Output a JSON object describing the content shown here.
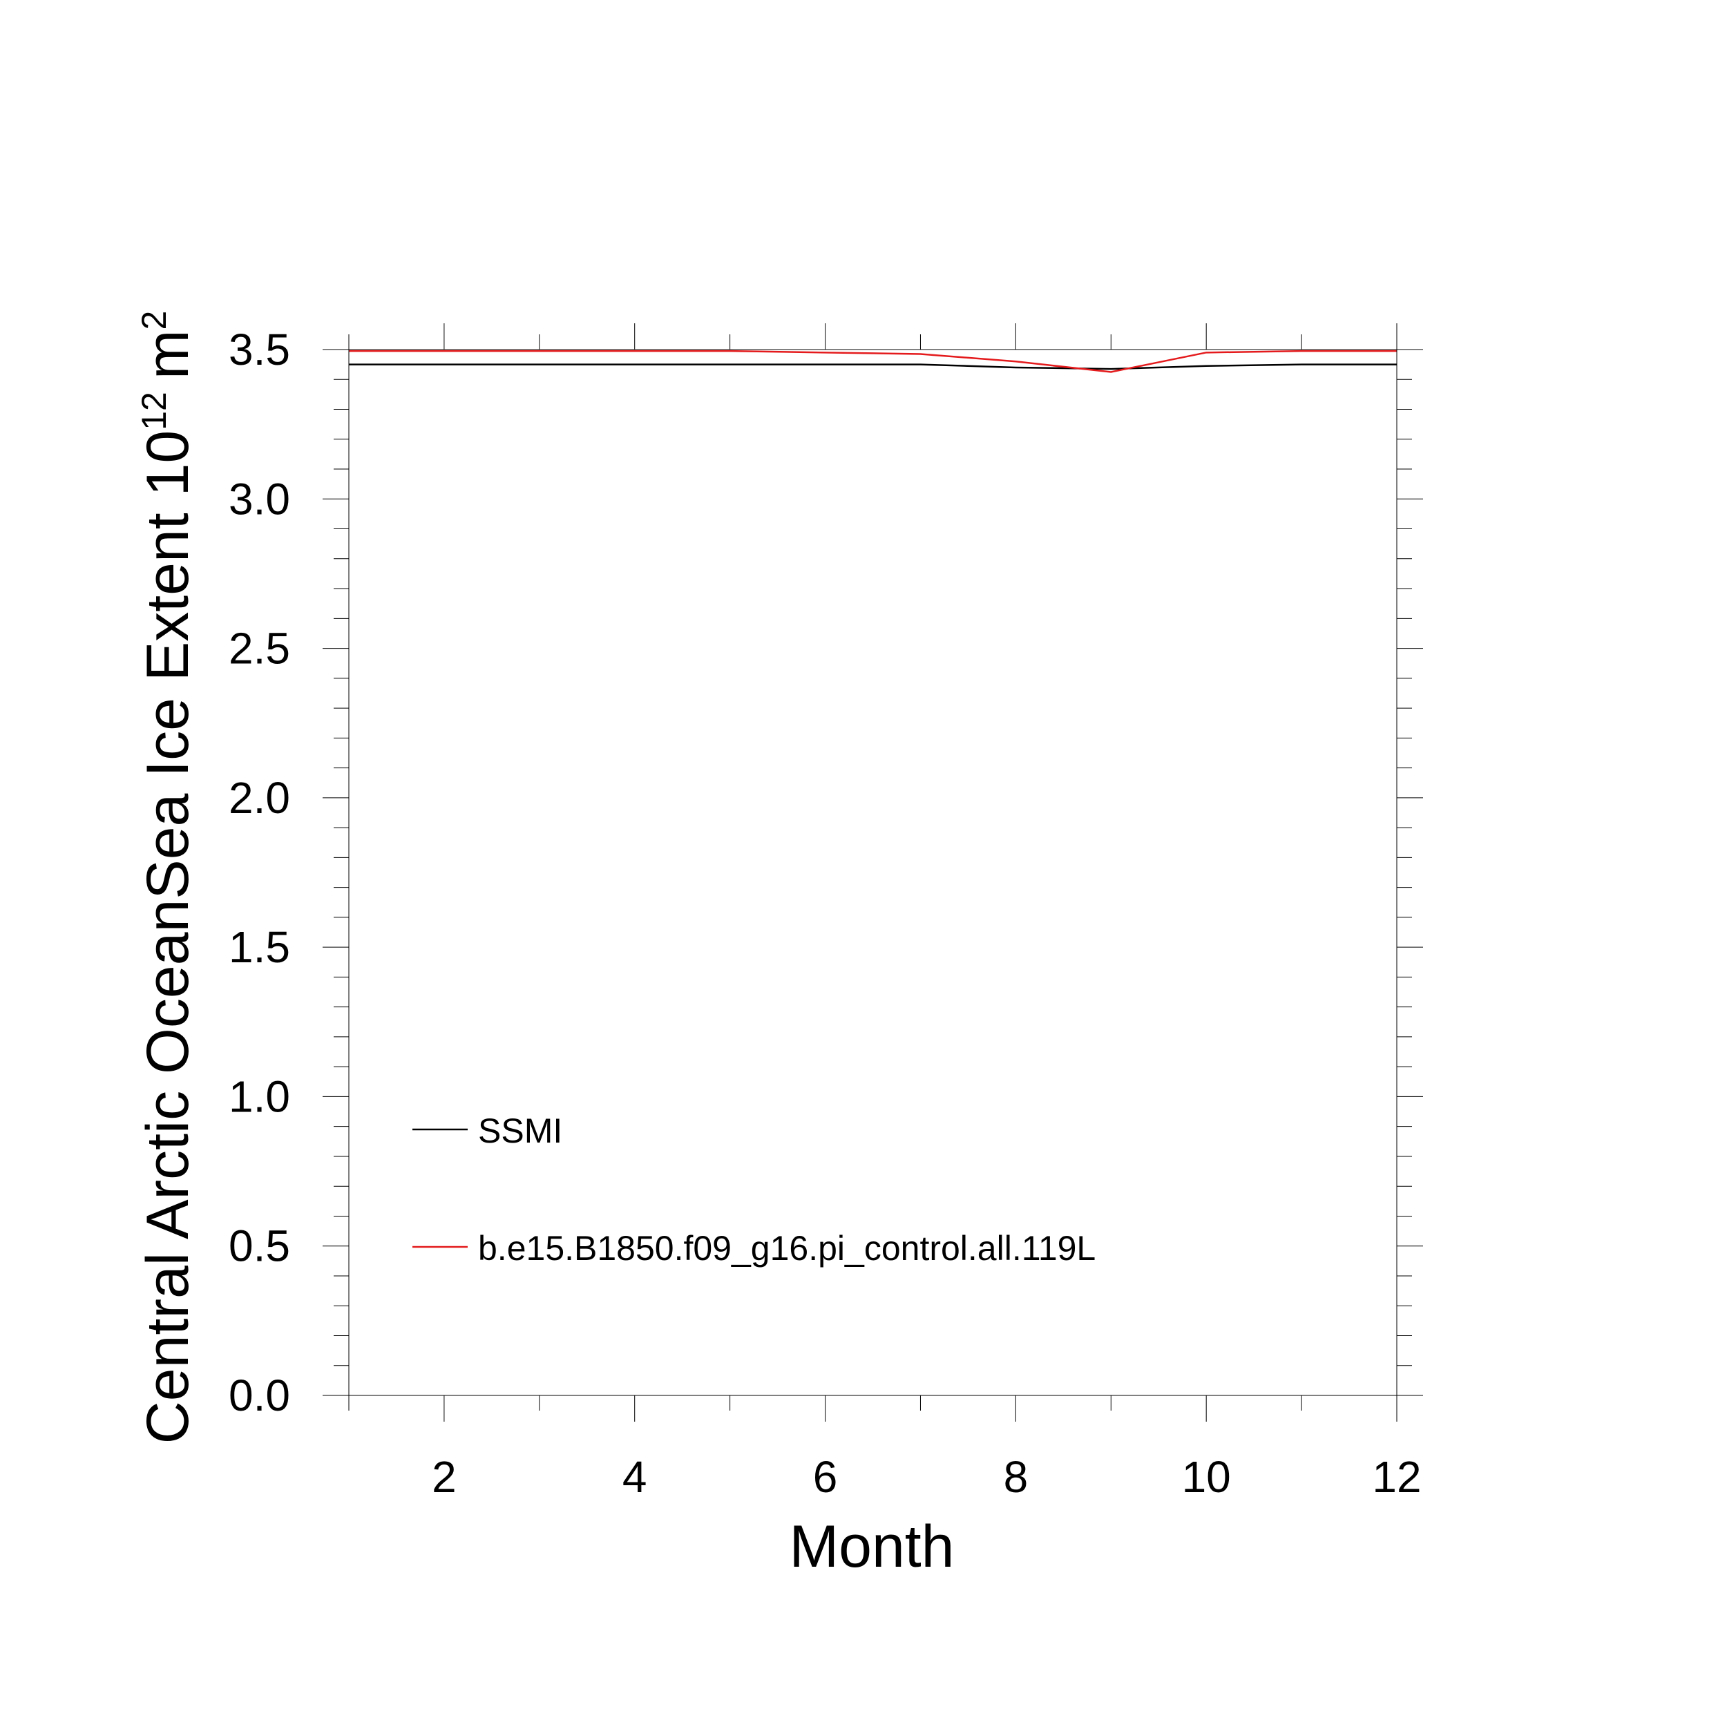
{
  "chart_data": {
    "type": "line",
    "title": "",
    "xlabel": "Month",
    "ylabel": {
      "text": "Central Arctic OceanSea Ice Extent 10",
      "exponent": "12",
      "unit": "m",
      "unit_exponent": "2"
    },
    "xlim": [
      1,
      12
    ],
    "ylim": [
      0,
      3.5
    ],
    "x_ticks": [
      2,
      4,
      6,
      8,
      10,
      12
    ],
    "x_tick_labels": [
      "2",
      "4",
      "6",
      "8",
      "10",
      "12"
    ],
    "y_ticks": [
      0,
      0.5,
      1.0,
      1.5,
      2.0,
      2.5,
      3.0,
      3.5
    ],
    "y_tick_labels": [
      "0.0",
      "0.5",
      "1.0",
      "1.5",
      "2.0",
      "2.5",
      "3.0",
      "3.5"
    ],
    "grid": false,
    "legend_position": "bottom-left",
    "x": [
      1,
      2,
      3,
      4,
      5,
      6,
      7,
      8,
      9,
      10,
      11,
      12
    ],
    "series": [
      {
        "name": "SSMI",
        "color": "#000000",
        "values": [
          3.45,
          3.45,
          3.45,
          3.45,
          3.45,
          3.45,
          3.45,
          3.44,
          3.435,
          3.445,
          3.45,
          3.45
        ]
      },
      {
        "name": "b.e15.B1850.f09_g16.pi_control.all.119L",
        "color": "#e41a1c",
        "values": [
          3.495,
          3.495,
          3.495,
          3.495,
          3.495,
          3.49,
          3.485,
          3.46,
          3.425,
          3.49,
          3.495,
          3.495
        ]
      }
    ]
  }
}
